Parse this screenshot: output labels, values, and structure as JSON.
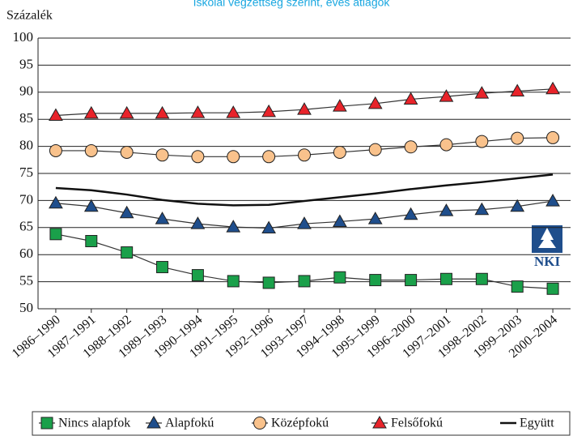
{
  "chart_data": {
    "type": "line",
    "title": "Iskolai végzettség szerint, éves átlagok",
    "y_axis_label": "Százalék",
    "logo_text": "NKI",
    "categories": [
      "1986–1990",
      "1987–1991",
      "1988–1992",
      "1989–1993",
      "1990–1994",
      "1991–1995",
      "1992–1996",
      "1993–1997",
      "1994–1998",
      "1995–1999",
      "1996–2000",
      "1997–2001",
      "1998–2002",
      "1999–2003",
      "2000–2004"
    ],
    "series": [
      {
        "name": "Nincs alapfok",
        "color": "#1aa04a",
        "marker": "square",
        "values": [
          63.8,
          62.5,
          60.4,
          57.7,
          56.2,
          55.1,
          54.8,
          55.1,
          55.8,
          55.3,
          55.3,
          55.5,
          55.5,
          54.1,
          53.7
        ]
      },
      {
        "name": "Alapfokú",
        "color": "#1f4e8c",
        "marker": "triangle",
        "values": [
          69.5,
          68.9,
          67.7,
          66.6,
          65.7,
          65.1,
          64.9,
          65.7,
          66.1,
          66.6,
          67.4,
          68.1,
          68.3,
          68.9,
          69.9
        ]
      },
      {
        "name": "Középfokú",
        "color": "#f9c28c",
        "marker": "circle",
        "values": [
          79.2,
          79.2,
          78.9,
          78.4,
          78.1,
          78.1,
          78.1,
          78.4,
          78.9,
          79.4,
          79.9,
          80.3,
          80.9,
          81.5,
          81.6
        ]
      },
      {
        "name": "Felsőfokú",
        "color": "#e8232a",
        "marker": "triangle",
        "values": [
          85.7,
          86.1,
          86.1,
          86.1,
          86.2,
          86.2,
          86.4,
          86.8,
          87.4,
          87.9,
          88.7,
          89.2,
          89.8,
          90.2,
          90.6
        ]
      },
      {
        "name": "Együtt",
        "color": "#111111",
        "marker": "none",
        "values": [
          72.3,
          71.9,
          71.1,
          70.1,
          69.4,
          69.1,
          69.2,
          69.9,
          70.6,
          71.3,
          72.1,
          72.8,
          73.4,
          74.1,
          74.8
        ]
      }
    ],
    "ylim": [
      50,
      100
    ],
    "yticks": [
      50,
      55,
      60,
      65,
      70,
      75,
      80,
      85,
      90,
      95,
      100
    ],
    "grid": true
  }
}
